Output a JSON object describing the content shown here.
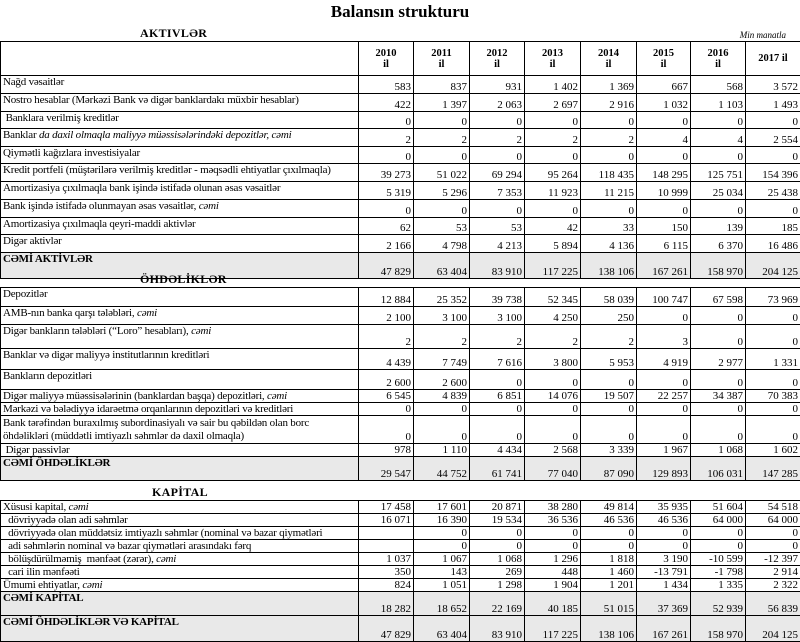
{
  "title": "Balansın strukturu",
  "unit": "Min manatla",
  "years": [
    "2010 il",
    "2011 il",
    "2012 il",
    "2013 il",
    "2014 il",
    "2015 il",
    "2016 il",
    "2017 il"
  ],
  "sections": [
    {
      "heading": "AKTIVLƏR",
      "rows": [
        {
          "label": "Nağd vəsaitlər",
          "values": [
            "583",
            "837",
            "931",
            "1 402",
            "1 369",
            "667",
            "568",
            "3 572"
          ]
        },
        {
          "label": "Nostro hesablar (Mərkəzi Bank və digər banklardakı müxbir hesablar)",
          "values": [
            "422",
            "1 397",
            "2 063",
            "2 697",
            "2 916",
            "1 032",
            "1 103",
            "1 493"
          ]
        },
        {
          "label": " Banklara verilmiş kreditlər",
          "values": [
            "0",
            "0",
            "0",
            "0",
            "0",
            "0",
            "0",
            "0"
          ]
        },
        {
          "label": "Banklar",
          "label_italic": " da daxil olmaqla maliyyə müəssisələrindəki depozitlər, cəmi",
          "values": [
            "2",
            "2",
            "2",
            "2",
            "2",
            "4",
            "4",
            "2 554"
          ]
        },
        {
          "label": "Qiymətli kağızlara investisiyalar",
          "values": [
            "0",
            "0",
            "0",
            "0",
            "0",
            "0",
            "0",
            "0"
          ]
        },
        {
          "label": "Kredit portfeli (müştərilərə verilmiş kreditlər - məqsədli ehtiyatlar çıxılmaqla)",
          "values": [
            "39 273",
            "51 022",
            "69 294",
            "95 264",
            "118 435",
            "148 295",
            "125 751",
            "154 396"
          ]
        },
        {
          "label": "Amortizasiya çıxılmaqla bank işində istifadə olunan əsas vəsaitlər",
          "values": [
            "5 319",
            "5 296",
            "7 353",
            "11 923",
            "11 215",
            "10 999",
            "25 034",
            "25 438"
          ]
        },
        {
          "label": "Bank işində istifadə olunmayan əsas vəsaitlər, ",
          "label_italic": "cəmi",
          "values": [
            "0",
            "0",
            "0",
            "0",
            "0",
            "0",
            "0",
            "0"
          ]
        },
        {
          "label": "Amortizasiya çıxılmaqla qeyri-maddi aktivlər",
          "values": [
            "62",
            "53",
            "53",
            "42",
            "33",
            "150",
            "139",
            "185"
          ]
        },
        {
          "label": "Digər aktivlər",
          "values": [
            "2 166",
            "4 798",
            "4 213",
            "5 894",
            "4 136",
            "6 115",
            "6 370",
            "16 486"
          ]
        },
        {
          "label": "CƏMİ AKTİVLƏR",
          "total": true,
          "values": [
            "47 829",
            "63 404",
            "83 910",
            "117 225",
            "138 106",
            "167 261",
            "158 970",
            "204 125"
          ]
        }
      ]
    },
    {
      "heading": "ÖHDƏLİKLƏR",
      "rows": [
        {
          "label": "Depozitlər",
          "values": [
            "12 884",
            "25 352",
            "39 738",
            "52 345",
            "58 039",
            "100 747",
            "67 598",
            "73 969"
          ]
        },
        {
          "label": "AMB-nın banka qarşı tələbləri, ",
          "label_italic": "cəmi",
          "values": [
            "2 100",
            "3 100",
            "3 100",
            "4 250",
            "250",
            "0",
            "0",
            "0"
          ]
        },
        {
          "label": "Digər bankların tələbləri (“Loro” hesabları), ",
          "label_italic": "cəmi",
          "values": [
            "2",
            "2",
            "2",
            "2",
            "2",
            "3",
            "0",
            "0"
          ]
        },
        {
          "label": "Banklar və digər maliyyə institutlarının kreditləri",
          "values": [
            "4 439",
            "7 749",
            "7 616",
            "3 800",
            "5 953",
            "4 919",
            "2 977",
            "1 331"
          ]
        },
        {
          "label": "Bankların depozitləri",
          "values": [
            "2 600",
            "2 600",
            "0",
            "0",
            "0",
            "0",
            "0",
            "0"
          ]
        },
        {
          "label": "Digər maliyyə müəssisələrinin (banklardan başqa) depozitləri, ",
          "label_italic": "cəmi",
          "values": [
            "6 545",
            "4 839",
            "6 851",
            "14 076",
            "19 507",
            "22 257",
            "34 387",
            "70 383"
          ]
        },
        {
          "label": "Mərkəzi və bələdiyyə idarəetmə orqanlarının depozitləri və kreditləri",
          "values": [
            "0",
            "0",
            "0",
            "0",
            "0",
            "0",
            "0",
            "0"
          ]
        },
        {
          "label": "Bank tərəfindən buraxılmış subordinasiyalı və sair bu qəbildən olan borc öhdəlikləri (müddətli imtiyazlı səhmlər də daxil olmaqla)",
          "values": [
            "0",
            "0",
            "0",
            "0",
            "0",
            "0",
            "0",
            "0"
          ]
        },
        {
          "label": " Digər passivlər",
          "values": [
            "978",
            "1 110",
            "4 434",
            "2 568",
            "3 339",
            "1 967",
            "1 068",
            "1 602"
          ]
        },
        {
          "label": "CƏMİ ÖHDƏLİKLƏR",
          "total": true,
          "values": [
            "29 547",
            "44 752",
            "61 741",
            "77 040",
            "87 090",
            "129 893",
            "106 031",
            "147 285"
          ]
        }
      ]
    },
    {
      "heading": "KAPİTAL",
      "rows": [
        {
          "label": "Xüsusi kapital, ",
          "label_italic": "cəmi",
          "values": [
            "17 458",
            "17 601",
            "20 871",
            "38 280",
            "49 814",
            "35 935",
            "51 604",
            "54 518"
          ]
        },
        {
          "label": "  dövriyyədə olan adi səhmlər",
          "values": [
            "16 071",
            "16 390",
            "19 534",
            "36 536",
            "46 536",
            "46 536",
            "64 000",
            "64 000"
          ]
        },
        {
          "label": "  dövriyyədə olan müddətsiz imtiyazlı səhmlər (nominal və bazar qiymətləri",
          "values": [
            "",
            "0",
            "0",
            "0",
            "0",
            "0",
            "0",
            "0"
          ]
        },
        {
          "label": "  adi səhmlərin nominal və bazar qiymətləri arasındakı fərq",
          "values": [
            "",
            "0",
            "0",
            "0",
            "0",
            "0",
            "0",
            "0"
          ]
        },
        {
          "label": "  bölüşdürülməmiş  mənfəət (zərər), ",
          "label_italic": "cəmi",
          "values": [
            "1 037",
            "1 067",
            "1 068",
            "1 296",
            "1 818",
            "3 190",
            "-10 599",
            "-12 397"
          ]
        },
        {
          "label": "  cari ilin mənfəəti",
          "values": [
            "350",
            "143",
            "269",
            "448",
            "1 460",
            "-13 791",
            "-1 798",
            "2 914"
          ]
        },
        {
          "label": "Ümumi ehtiyatlar, ",
          "label_italic": "cəmi",
          "values": [
            "824",
            "1 051",
            "1 298",
            "1 904",
            "1 201",
            "1 434",
            "1 335",
            "2 322"
          ]
        },
        {
          "label": "CƏMİ KAPİTAL",
          "total": true,
          "values": [
            "18 282",
            "18 652",
            "22 169",
            "40 185",
            "51 015",
            "37 369",
            "52 939",
            "56 839"
          ]
        },
        {
          "label": "CƏMİ ÖHDƏLİKLƏR VƏ KAPİTAL",
          "total": true,
          "values": [
            "47 829",
            "63 404",
            "83 910",
            "117 225",
            "138 106",
            "167 261",
            "158 970",
            "204 125"
          ]
        }
      ]
    }
  ]
}
